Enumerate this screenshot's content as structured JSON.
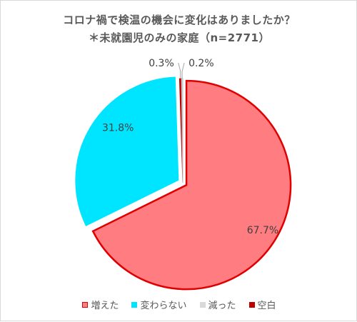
{
  "chart_data": {
    "type": "pie",
    "title": "コロナ禍で検温の機会に変化はありましたか？",
    "subtitle": "＊未就園児のみの家庭（n=2771）",
    "categories": [
      "増えた",
      "変わらない",
      "減った",
      "空白"
    ],
    "values": [
      67.7,
      31.8,
      0.2,
      0.3
    ],
    "value_labels": [
      "67.7%",
      "31.8%",
      "0.2%",
      "0.3%"
    ],
    "colors": [
      "#ff7c80",
      "#00e5ff",
      "#d9d9d9",
      "#c00000"
    ],
    "legend_placement": "bottom"
  },
  "legend": [
    {
      "label": "増えた",
      "color": "#ff7c80",
      "border": "#e00000"
    },
    {
      "label": "変わらない",
      "color": "#00e5ff",
      "border": "#00e5ff"
    },
    {
      "label": "減った",
      "color": "#d9d9d9",
      "border": "#d9d9d9"
    },
    {
      "label": "空白",
      "color": "#c00000",
      "border": "#c00000"
    }
  ]
}
